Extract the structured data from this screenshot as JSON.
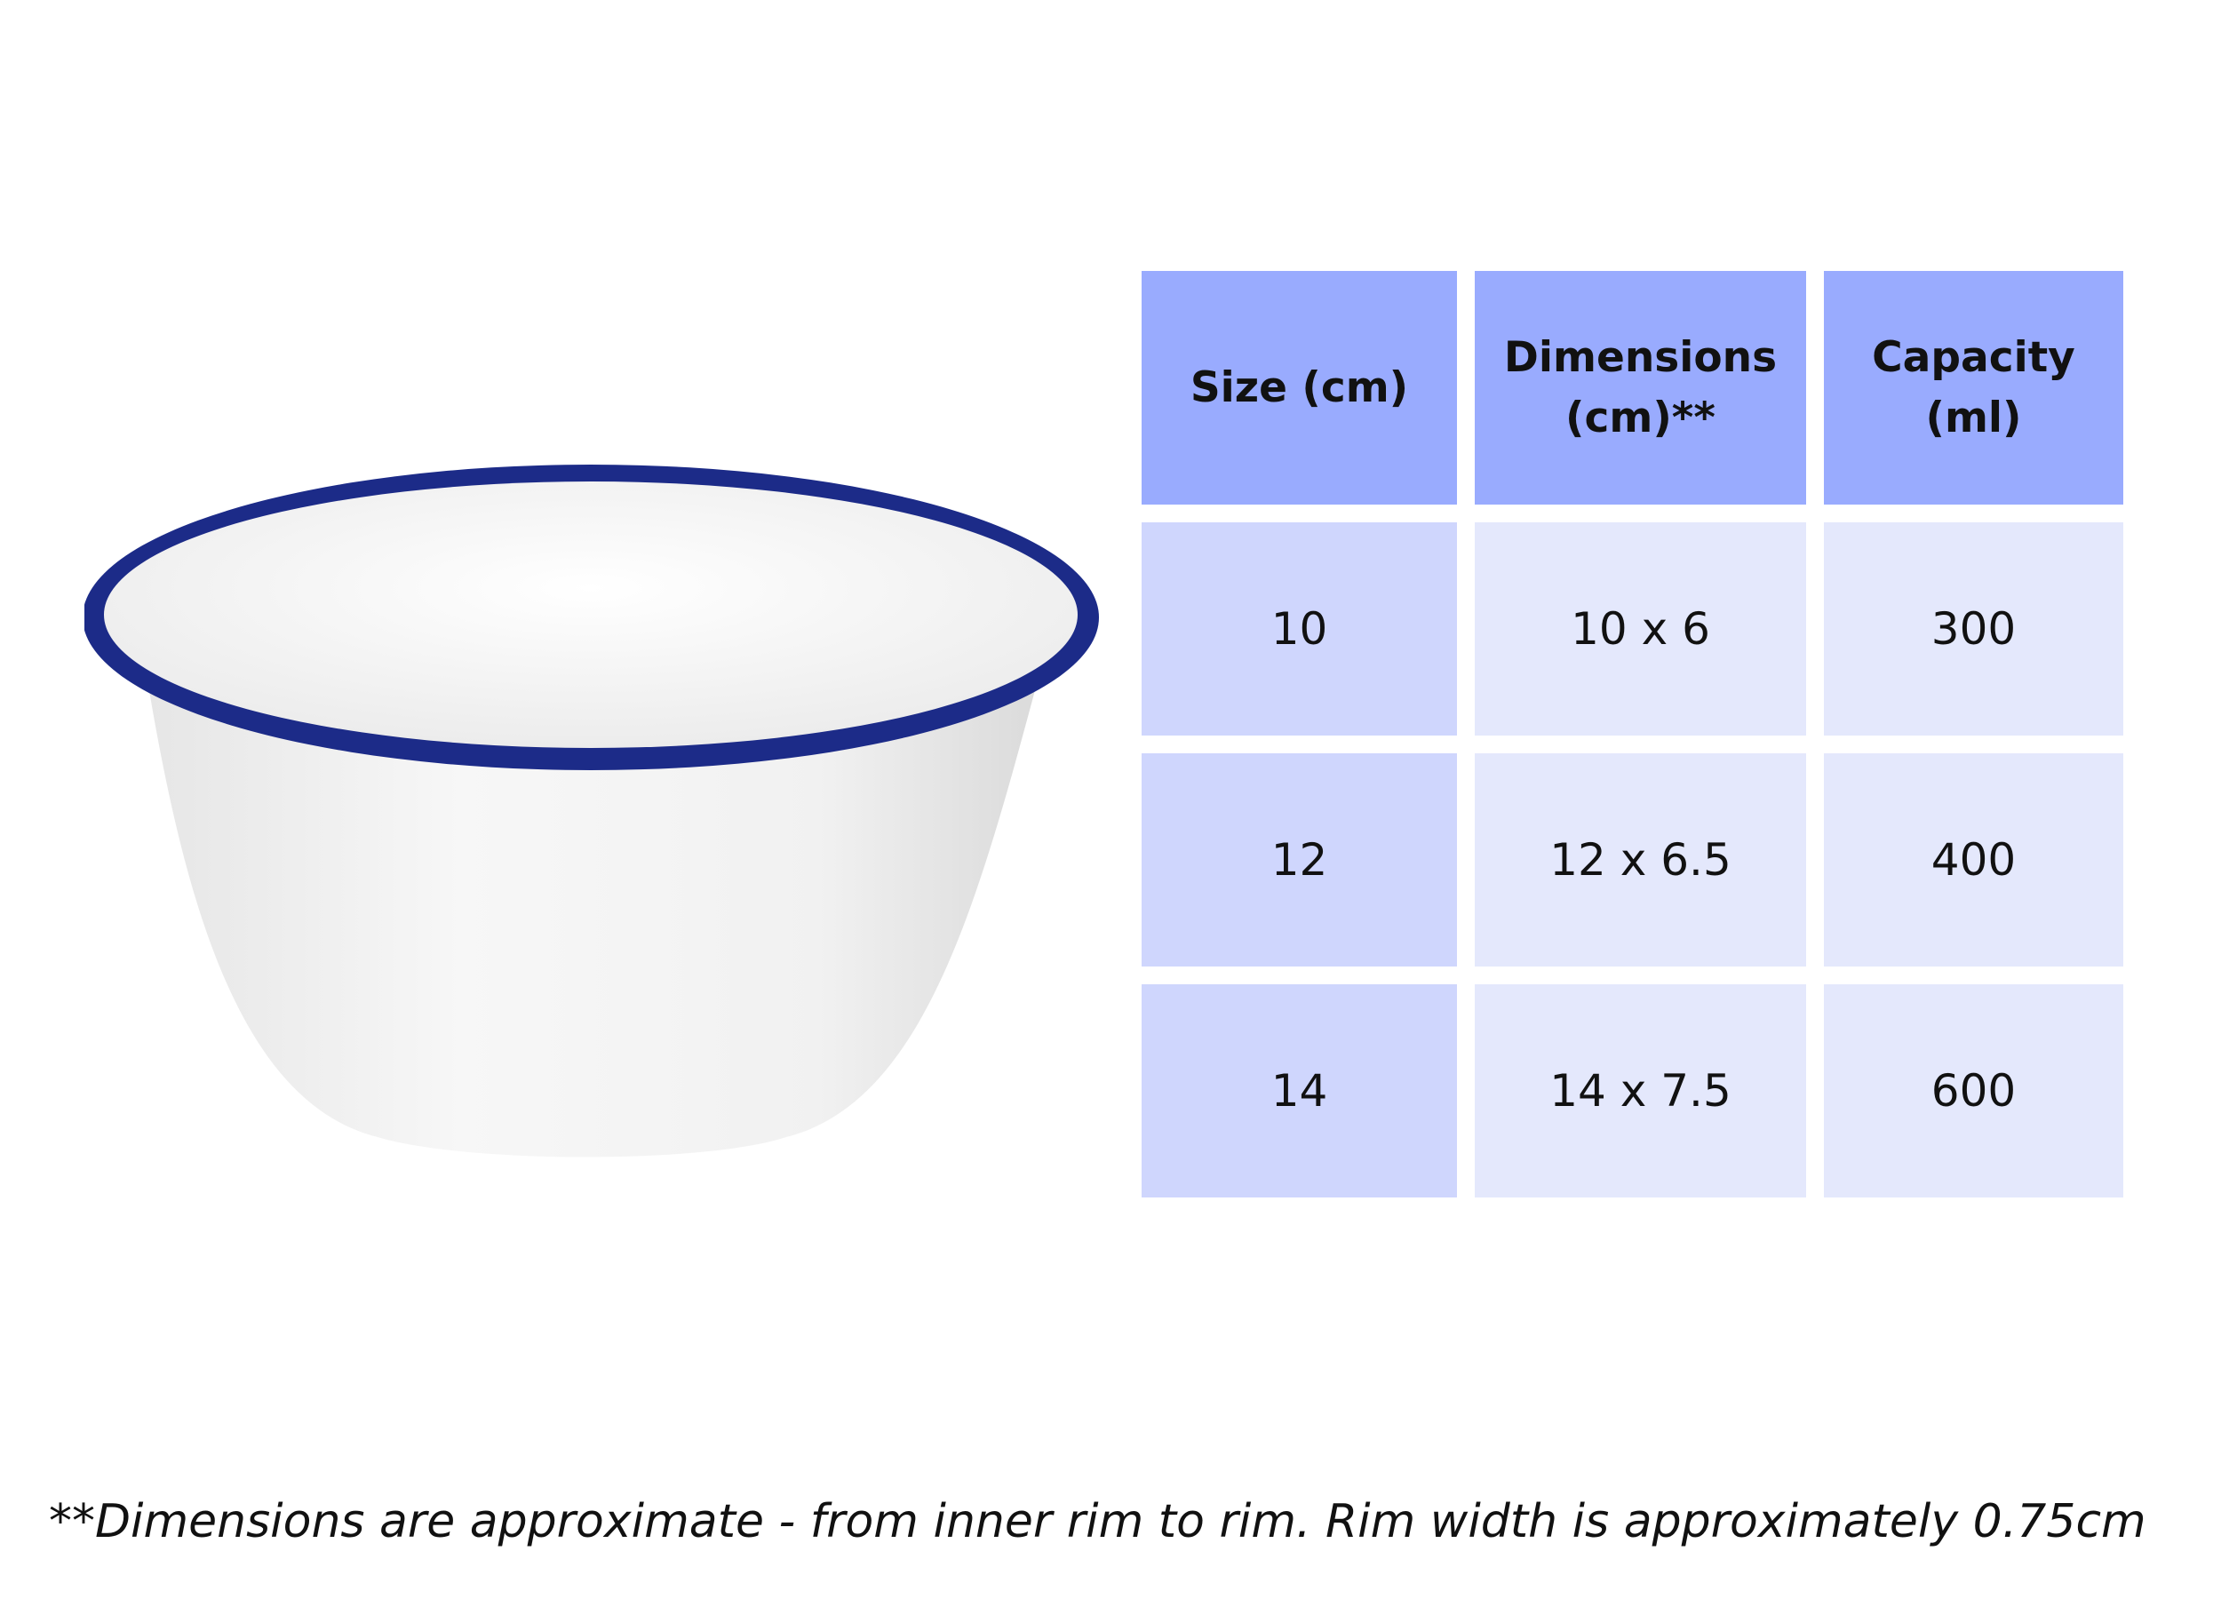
{
  "colors": {
    "header_bg": "#99abfe",
    "size_col_bg": "#cfd6fd",
    "other_col_bg": "#e4e8fc",
    "rim_blue": "#1c2b88",
    "bowl_white": "#f2f2f2"
  },
  "image": {
    "icon": "enamel-bowl-icon"
  },
  "table": {
    "headers": [
      "Size (cm)",
      "Dimensions (cm)**",
      "Capacity (ml)"
    ],
    "rows": [
      [
        "10",
        "10 x 6",
        "300"
      ],
      [
        "12",
        "12 x 6.5",
        "400"
      ],
      [
        "14",
        "14 x 7.5",
        "600"
      ]
    ]
  },
  "footnote": "**Dimensions are approximate - from inner rim to rim. Rim width is approximately 0.75cm"
}
